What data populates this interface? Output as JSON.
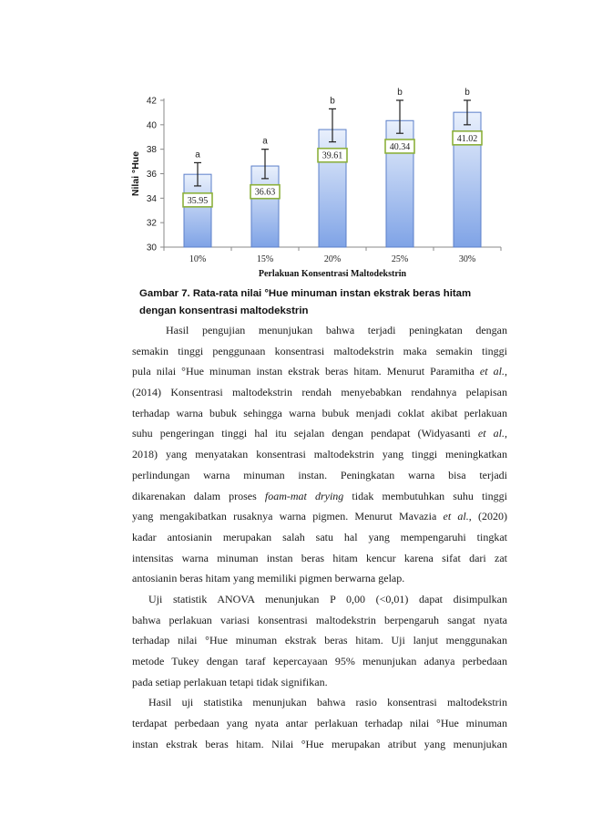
{
  "chart_data": {
    "type": "bar",
    "title": "",
    "xlabel": "Perlakuan Konsentrasi Maltodekstrin",
    "ylabel": "Nilai °Hue",
    "categories": [
      "10%",
      "15%",
      "20%",
      "25%",
      "30%"
    ],
    "values": [
      35.95,
      36.63,
      39.61,
      40.34,
      41.02
    ],
    "value_labels": [
      "35.95",
      "36.63",
      "39.61",
      "40.34",
      "41.02"
    ],
    "error_low": [
      35.0,
      35.6,
      38.6,
      39.3,
      40.0
    ],
    "error_high": [
      36.9,
      38.0,
      41.3,
      42.0,
      42.0
    ],
    "significance": [
      "a",
      "a",
      "b",
      "b",
      "b"
    ],
    "ylim": [
      30,
      42
    ],
    "yticks": [
      "30",
      "32",
      "34",
      "36",
      "38",
      "40",
      "42"
    ],
    "grid": false,
    "legend": "none",
    "colors": {
      "bar_top": "#e9f0fc",
      "bar_bottom": "#7fa3e6",
      "bar_border": "#5b7fc9",
      "label_border": "#8cb03c",
      "error_bar": "#222222"
    }
  },
  "caption": {
    "line1": "Gambar 7.  Rata-rata nilai °Hue minuman instan ekstrak beras hitam",
    "line2": "dengan konsentrasi maltodekstrin"
  },
  "paragraphs": [
    {
      "lines": [
        "Hasil pengujian menunjukan bahwa terjadi peningkatan dengan",
        "semakin tinggi penggunaan konsentrasi maltodekstrin maka semakin tinggi",
        "pula nilai °Hue minuman instan ekstrak beras hitam. Menurut Paramitha et al.,",
        "(2014) Konsentrasi maltodekstrin rendah menyebabkan rendahnya pelapisan",
        "terhadap warna bubuk sehingga warna bubuk menjadi coklat akibat perlakuan",
        "suhu pengeringan tinggi hal itu sejalan dengan pendapat  (Widyasanti et al.,",
        "2018) yang menyatakan konsentrasi maltodekstrin yang tinggi meningkatkan",
        "perlindungan warna minuman instan. Peningkatan warna bisa terjadi",
        "dikarenakan dalam proses foam-mat drying tidak membutuhkan suhu tinggi",
        "yang mengakibatkan rusaknya warna pigmen. Menurut Mavazia et al., (2020)",
        "kadar antosianin merupakan salah satu hal yang mempengaruhi tingkat",
        "intensitas warna minuman instan beras hitam kencur karena sifat dari zat",
        "antosianin beras hitam yang memiliki pigmen berwarna gelap."
      ]
    },
    {
      "lines": [
        "Uji statistik ANOVA menunjukan P 0,00 (<0,01) dapat disimpulkan",
        "bahwa perlakuan variasi konsentrasi maltodekstrin berpengaruh sangat nyata",
        "terhadap nilai °Hue minuman ekstrak beras hitam. Uji lanjut menggunakan",
        "metode Tukey dengan taraf kepercayaan 95% menunjukan adanya perbedaan",
        "pada setiap perlakuan tetapi tidak signifikan."
      ]
    },
    {
      "lines": [
        "Hasil uji statistika menunjukan bahwa rasio konsentrasi maltodekstrin",
        "terdapat perbedaan yang nyata antar perlakuan terhadap nilai °Hue minuman",
        "instan ekstrak beras hitam. Nilai °Hue merupakan atribut yang menunjukan"
      ]
    }
  ]
}
